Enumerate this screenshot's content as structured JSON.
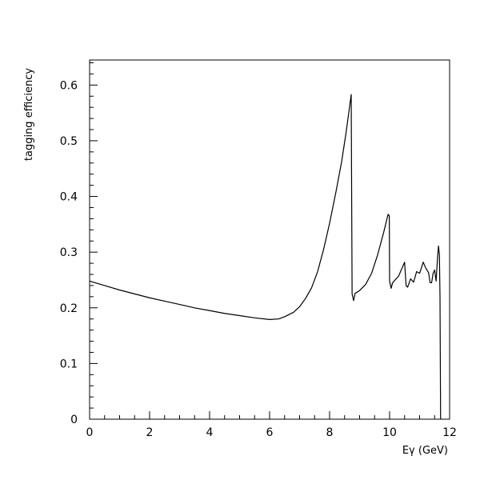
{
  "chart_data": {
    "type": "line",
    "title": "",
    "xlabel": "Eγ (GeV)",
    "ylabel": "tagging efficiency",
    "xlim": [
      0,
      12
    ],
    "ylim": [
      0,
      0.645
    ],
    "grid": false,
    "legend": "none",
    "x_ticks": [
      "0",
      "2",
      "4",
      "6",
      "8",
      "10",
      "12"
    ],
    "y_ticks": [
      "0",
      "0.1",
      "0.2",
      "0.3",
      "0.4",
      "0.5",
      "0.6"
    ],
    "series": [
      {
        "color": "#000000",
        "points": [
          [
            0.0,
            0.248
          ],
          [
            0.5,
            0.24
          ],
          [
            1.0,
            0.232
          ],
          [
            1.5,
            0.225
          ],
          [
            2.0,
            0.218
          ],
          [
            2.5,
            0.212
          ],
          [
            3.0,
            0.206
          ],
          [
            3.5,
            0.2
          ],
          [
            4.0,
            0.195
          ],
          [
            4.5,
            0.19
          ],
          [
            5.0,
            0.186
          ],
          [
            5.5,
            0.182
          ],
          [
            6.0,
            0.179
          ],
          [
            6.3,
            0.18
          ],
          [
            6.5,
            0.184
          ],
          [
            6.8,
            0.192
          ],
          [
            7.0,
            0.202
          ],
          [
            7.2,
            0.217
          ],
          [
            7.4,
            0.236
          ],
          [
            7.6,
            0.265
          ],
          [
            7.8,
            0.305
          ],
          [
            8.0,
            0.352
          ],
          [
            8.2,
            0.405
          ],
          [
            8.4,
            0.462
          ],
          [
            8.55,
            0.515
          ],
          [
            8.65,
            0.555
          ],
          [
            8.72,
            0.583
          ],
          [
            8.75,
            0.225
          ],
          [
            8.8,
            0.213
          ],
          [
            8.85,
            0.226
          ],
          [
            9.0,
            0.231
          ],
          [
            9.2,
            0.242
          ],
          [
            9.4,
            0.262
          ],
          [
            9.6,
            0.295
          ],
          [
            9.8,
            0.335
          ],
          [
            9.95,
            0.368
          ],
          [
            9.99,
            0.365
          ],
          [
            10.0,
            0.248
          ],
          [
            10.05,
            0.235
          ],
          [
            10.1,
            0.245
          ],
          [
            10.3,
            0.257
          ],
          [
            10.5,
            0.282
          ],
          [
            10.55,
            0.24
          ],
          [
            10.6,
            0.237
          ],
          [
            10.7,
            0.252
          ],
          [
            10.8,
            0.246
          ],
          [
            10.9,
            0.265
          ],
          [
            11.0,
            0.262
          ],
          [
            11.05,
            0.27
          ],
          [
            11.12,
            0.282
          ],
          [
            11.2,
            0.272
          ],
          [
            11.3,
            0.263
          ],
          [
            11.35,
            0.245
          ],
          [
            11.4,
            0.245
          ],
          [
            11.45,
            0.262
          ],
          [
            11.5,
            0.268
          ],
          [
            11.55,
            0.248
          ],
          [
            11.6,
            0.292
          ],
          [
            11.63,
            0.311
          ],
          [
            11.66,
            0.295
          ],
          [
            11.68,
            0.22
          ],
          [
            11.7,
            0.0
          ]
        ]
      }
    ]
  }
}
